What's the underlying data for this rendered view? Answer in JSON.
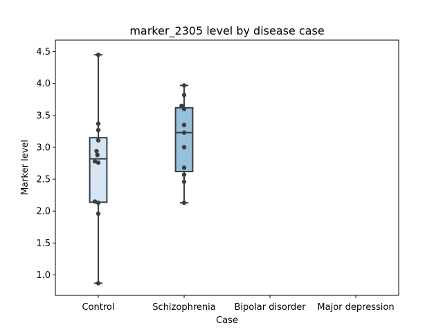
{
  "chart_data": {
    "type": "box",
    "title": "marker_2305 level by disease case",
    "xlabel": "Case",
    "ylabel": "Marker level",
    "ylim": [
      0.68,
      4.68
    ],
    "yticks": [
      1.0,
      1.5,
      2.0,
      2.5,
      3.0,
      3.5,
      4.0,
      4.5
    ],
    "ytick_labels": [
      "1.0",
      "1.5",
      "2.0",
      "2.5",
      "3.0",
      "3.5",
      "4.0",
      "4.5"
    ],
    "categories": [
      "Control",
      "Schizophrenia",
      "Bipolar disorder",
      "Major depression"
    ],
    "grid": false,
    "colors": {
      "control_box": "#d5e5f3",
      "schizophrenia_box": "#97c0da",
      "edge": "#383c44",
      "point": "#3d3d3d"
    },
    "boxes": [
      {
        "category": "Control",
        "whisker_low": 0.87,
        "q1": 2.14,
        "median": 2.82,
        "q3": 3.15,
        "whisker_high": 4.45
      },
      {
        "category": "Schizophrenia",
        "whisker_low": 2.13,
        "q1": 2.62,
        "median": 3.23,
        "q3": 3.62,
        "whisker_high": 3.97
      }
    ],
    "points": [
      {
        "category": "Control",
        "values": [
          4.45,
          3.37,
          3.27,
          3.11,
          2.94,
          2.88,
          2.78,
          2.76,
          2.15,
          2.13,
          1.96,
          0.87
        ],
        "jitter": [
          0,
          0,
          0,
          0,
          -0.1,
          -0.05,
          -0.2,
          0,
          -0.2,
          0,
          0,
          0
        ]
      },
      {
        "category": "Schizophrenia",
        "values": [
          3.97,
          3.82,
          3.65,
          3.6,
          3.35,
          3.23,
          3.0,
          2.68,
          2.57,
          2.46,
          2.13
        ],
        "jitter": [
          0,
          0,
          -0.15,
          0,
          0,
          0,
          0,
          0,
          0,
          0,
          0
        ]
      }
    ]
  }
}
